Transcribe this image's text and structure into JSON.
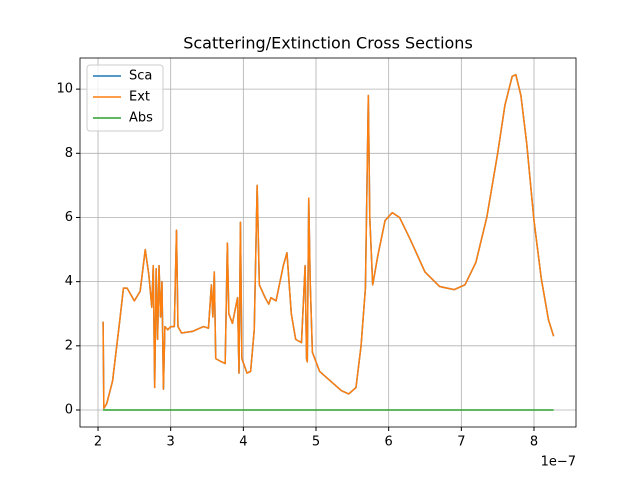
{
  "chart_data": {
    "type": "line",
    "title": "Scattering/Extinction Cross Sections",
    "x_offset_label": "1e−7",
    "x": [
      2.07,
      2.08,
      2.12,
      2.2,
      2.3,
      2.35,
      2.4,
      2.5,
      2.58,
      2.65,
      2.7,
      2.74,
      2.76,
      2.78,
      2.8,
      2.82,
      2.84,
      2.86,
      2.88,
      2.9,
      2.92,
      2.96,
      3.0,
      3.05,
      3.08,
      3.1,
      3.15,
      3.3,
      3.45,
      3.52,
      3.56,
      3.58,
      3.6,
      3.62,
      3.7,
      3.75,
      3.78,
      3.8,
      3.85,
      3.92,
      3.94,
      3.96,
      3.98,
      4.05,
      4.1,
      4.15,
      4.19,
      4.22,
      4.3,
      4.35,
      4.38,
      4.45,
      4.55,
      4.6,
      4.66,
      4.72,
      4.8,
      4.85,
      4.87,
      4.88,
      4.9,
      4.92,
      4.95,
      5.05,
      5.2,
      5.35,
      5.45,
      5.55,
      5.62,
      5.68,
      5.72,
      5.74,
      5.78,
      5.85,
      5.95,
      6.05,
      6.15,
      6.3,
      6.5,
      6.7,
      6.9,
      7.05,
      7.2,
      7.35,
      7.5,
      7.6,
      7.7,
      7.75,
      7.82,
      7.9,
      8.0,
      8.1,
      8.2,
      8.27
    ],
    "series": [
      {
        "name": "Sca",
        "color": "#1f77b4",
        "values": [
          2.75,
          0.05,
          0.2,
          0.9,
          2.8,
          3.8,
          3.8,
          3.4,
          3.7,
          5.0,
          4.2,
          3.2,
          4.5,
          0.7,
          4.4,
          2.2,
          4.5,
          2.9,
          4.0,
          0.65,
          2.6,
          2.5,
          2.6,
          2.6,
          5.6,
          2.6,
          2.4,
          2.45,
          2.6,
          2.55,
          3.9,
          2.9,
          4.3,
          1.6,
          1.5,
          1.45,
          5.2,
          3.0,
          2.7,
          3.5,
          1.15,
          5.85,
          1.6,
          1.15,
          1.2,
          2.5,
          7.0,
          3.9,
          3.5,
          3.3,
          3.5,
          3.4,
          4.5,
          4.9,
          3.0,
          2.2,
          2.1,
          4.5,
          1.6,
          1.5,
          6.6,
          4.0,
          1.8,
          1.2,
          0.9,
          0.6,
          0.5,
          0.7,
          2.0,
          3.8,
          9.8,
          6.0,
          3.9,
          4.8,
          5.9,
          6.15,
          6.0,
          5.3,
          4.3,
          3.85,
          3.75,
          3.9,
          4.6,
          6.0,
          8.0,
          9.5,
          10.4,
          10.45,
          9.8,
          8.3,
          5.9,
          4.1,
          2.8,
          2.3
        ]
      },
      {
        "name": "Ext",
        "color": "#ff7f0e",
        "values": [
          2.75,
          0.05,
          0.2,
          0.9,
          2.8,
          3.8,
          3.8,
          3.4,
          3.7,
          5.0,
          4.2,
          3.2,
          4.5,
          0.7,
          4.4,
          2.2,
          4.5,
          2.9,
          4.0,
          0.65,
          2.6,
          2.5,
          2.6,
          2.6,
          5.6,
          2.6,
          2.4,
          2.45,
          2.6,
          2.55,
          3.9,
          2.9,
          4.3,
          1.6,
          1.5,
          1.45,
          5.2,
          3.0,
          2.7,
          3.5,
          1.15,
          5.85,
          1.6,
          1.15,
          1.2,
          2.5,
          7.0,
          3.9,
          3.5,
          3.3,
          3.5,
          3.4,
          4.5,
          4.9,
          3.0,
          2.2,
          2.1,
          4.5,
          1.6,
          1.5,
          6.6,
          4.0,
          1.8,
          1.2,
          0.9,
          0.6,
          0.5,
          0.7,
          2.0,
          3.8,
          9.8,
          6.0,
          3.9,
          4.8,
          5.9,
          6.15,
          6.0,
          5.3,
          4.3,
          3.85,
          3.75,
          3.9,
          4.6,
          6.0,
          8.0,
          9.5,
          10.4,
          10.45,
          9.8,
          8.3,
          5.9,
          4.1,
          2.8,
          2.3
        ]
      },
      {
        "name": "Abs",
        "color": "#2ca02c",
        "values": [
          0,
          0,
          0,
          0,
          0,
          0,
          0,
          0,
          0,
          0,
          0,
          0,
          0,
          0,
          0,
          0,
          0,
          0,
          0,
          0,
          0,
          0,
          0,
          0,
          0,
          0,
          0,
          0,
          0,
          0,
          0,
          0,
          0,
          0,
          0,
          0,
          0,
          0,
          0,
          0,
          0,
          0,
          0,
          0,
          0,
          0,
          0,
          0,
          0,
          0,
          0,
          0,
          0,
          0,
          0,
          0,
          0,
          0,
          0,
          0,
          0,
          0,
          0,
          0,
          0,
          0,
          0,
          0,
          0,
          0,
          0,
          0,
          0,
          0,
          0,
          0,
          0,
          0,
          0,
          0,
          0,
          0,
          0,
          0,
          0,
          0,
          0,
          0,
          0,
          0,
          0,
          0,
          0,
          0
        ]
      }
    ],
    "xlim": [
      1.752,
      8.578
    ],
    "ylim": [
      -0.53,
      10.97
    ],
    "xticks": [
      2,
      3,
      4,
      5,
      6,
      7,
      8
    ],
    "yticks": [
      0,
      2,
      4,
      6,
      8,
      10
    ],
    "grid": true,
    "legend": "upper-left"
  }
}
